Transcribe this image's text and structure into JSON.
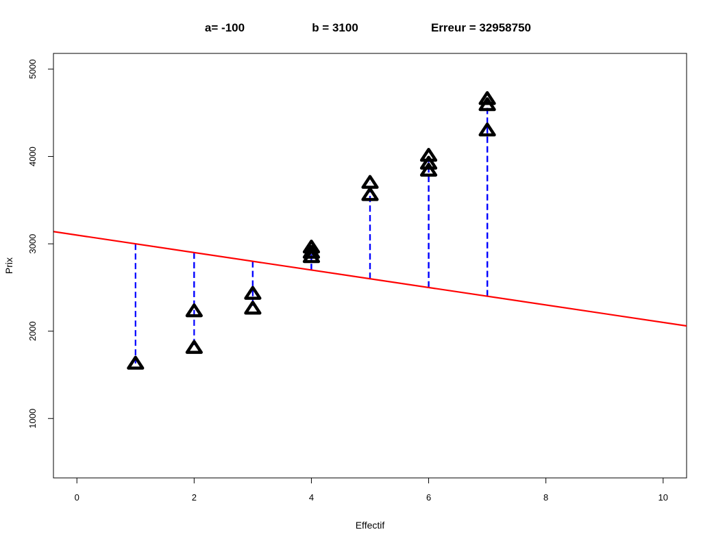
{
  "header": {
    "a_label": "a= -100",
    "b_label": "b = 3100",
    "error_label": "Erreur = 32958750"
  },
  "chart_data": {
    "type": "scatter",
    "xlabel": "Effectif",
    "ylabel": "Prix",
    "xlim": [
      -0.4,
      10.4
    ],
    "ylim": [
      320,
      5180
    ],
    "x_ticks": [
      0,
      2,
      4,
      6,
      8,
      10
    ],
    "x_tick_labels": [
      "0",
      "2",
      "4",
      "6",
      "8",
      "10"
    ],
    "y_ticks": [
      1000,
      2000,
      3000,
      4000,
      5000
    ],
    "y_tick_labels": [
      "1000",
      "2000",
      "3000",
      "4000",
      "5000"
    ],
    "grid": false,
    "regression_line": {
      "slope": -100,
      "intercept": 3100,
      "color": "#ff0000"
    },
    "points": [
      {
        "x": 1,
        "y": 1630
      },
      {
        "x": 2,
        "y": 1810
      },
      {
        "x": 2,
        "y": 2230
      },
      {
        "x": 3,
        "y": 2260
      },
      {
        "x": 3,
        "y": 2430
      },
      {
        "x": 4,
        "y": 2850
      },
      {
        "x": 4,
        "y": 2900
      },
      {
        "x": 4,
        "y": 2960
      },
      {
        "x": 5,
        "y": 3560
      },
      {
        "x": 5,
        "y": 3700
      },
      {
        "x": 6,
        "y": 3840
      },
      {
        "x": 6,
        "y": 3920
      },
      {
        "x": 6,
        "y": 4010
      },
      {
        "x": 7,
        "y": 4300
      },
      {
        "x": 7,
        "y": 4590
      },
      {
        "x": 7,
        "y": 4660
      }
    ],
    "colors": {
      "points": "#000000",
      "residuals": "#0000ff",
      "line": "#ff0000"
    },
    "marker": "triangle"
  }
}
